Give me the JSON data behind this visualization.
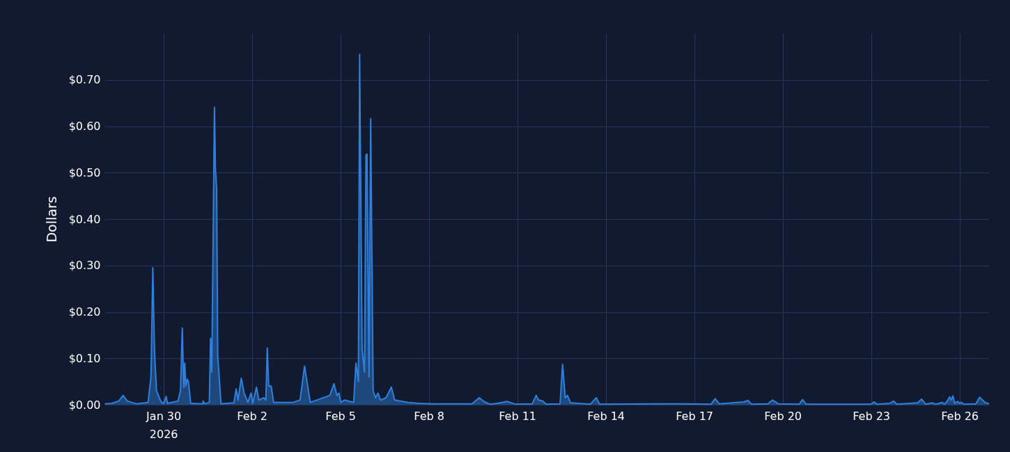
{
  "chart_data": {
    "type": "area",
    "ylabel": "Dollars",
    "grid": true,
    "xlim": [
      "2026-01-28T00:00",
      "2026-02-27T00:00"
    ],
    "xticks": [
      {
        "value": "2026-01-30",
        "label": "Jan 30\n2026"
      },
      {
        "value": "2026-02-02",
        "label": "Feb 2"
      },
      {
        "value": "2026-02-05",
        "label": "Feb 5"
      },
      {
        "value": "2026-02-08",
        "label": "Feb 8"
      },
      {
        "value": "2026-02-11",
        "label": "Feb 11"
      },
      {
        "value": "2026-02-14",
        "label": "Feb 14"
      },
      {
        "value": "2026-02-17",
        "label": "Feb 17"
      },
      {
        "value": "2026-02-20",
        "label": "Feb 20"
      },
      {
        "value": "2026-02-23",
        "label": "Feb 23"
      },
      {
        "value": "2026-02-26",
        "label": "Feb 26"
      }
    ],
    "ylim": [
      0,
      0.8
    ],
    "yticks": [
      {
        "value": 0,
        "label": "$0.00"
      },
      {
        "value": 0.1,
        "label": "$0.10"
      },
      {
        "value": 0.2,
        "label": "$0.20"
      },
      {
        "value": 0.3,
        "label": "$0.30"
      },
      {
        "value": 0.4,
        "label": "$0.40"
      },
      {
        "value": 0.5,
        "label": "$0.50"
      },
      {
        "value": 0.6,
        "label": "$0.60"
      },
      {
        "value": 0.7,
        "label": "$0.70"
      }
    ],
    "x": [
      "2026-01-28T00:20",
      "2026-01-28T06:00",
      "2026-01-28T11:40",
      "2026-01-28T15:10",
      "2026-01-28T18:30",
      "2026-01-29T01:50",
      "2026-01-29T11:30",
      "2026-01-29T13:50",
      "2026-01-29T15:20",
      "2026-01-29T16:40",
      "2026-01-29T18:20",
      "2026-01-29T21:40",
      "2026-01-30T00:00",
      "2026-01-30T02:10",
      "2026-01-30T03:20",
      "2026-01-30T11:50",
      "2026-01-30T13:50",
      "2026-01-30T15:20",
      "2026-01-30T16:30",
      "2026-01-30T17:20",
      "2026-01-30T18:10",
      "2026-01-30T19:20",
      "2026-01-30T20:20",
      "2026-01-30T22:10",
      "2026-01-31T07:50",
      "2026-01-31T08:20",
      "2026-01-31T09:30",
      "2026-01-31T13:20",
      "2026-01-31T14:20",
      "2026-01-31T15:20",
      "2026-01-31T17:30",
      "2026-01-31T18:20",
      "2026-01-31T19:20",
      "2026-01-31T20:10",
      "2026-01-31T22:50",
      "2026-02-01T09:20",
      "2026-02-01T11:10",
      "2026-02-01T12:40",
      "2026-02-01T15:20",
      "2026-02-01T17:40",
      "2026-02-01T20:40",
      "2026-02-01T23:20",
      "2026-02-02T00:40",
      "2026-02-02T03:40",
      "2026-02-02T05:40",
      "2026-02-02T09:40",
      "2026-02-02T11:20",
      "2026-02-02T12:30",
      "2026-02-02T13:40",
      "2026-02-02T15:40",
      "2026-02-02T17:40",
      "2026-02-03T09:30",
      "2026-02-03T15:10",
      "2026-02-03T18:50",
      "2026-02-03T23:30",
      "2026-02-04T15:20",
      "2026-02-04T18:50",
      "2026-02-04T21:10",
      "2026-02-04T22:50",
      "2026-02-05T00:20",
      "2026-02-05T03:20",
      "2026-02-05T10:50",
      "2026-02-05T12:40",
      "2026-02-05T14:40",
      "2026-02-05T15:40",
      "2026-02-05T17:40",
      "2026-02-05T19:40",
      "2026-02-05T20:50",
      "2026-02-05T21:40",
      "2026-02-05T23:20",
      "2026-02-06T00:40",
      "2026-02-06T02:40",
      "2026-02-06T04:40",
      "2026-02-06T06:40",
      "2026-02-06T08:30",
      "2026-02-06T13:10",
      "2026-02-06T17:30",
      "2026-02-06T20:10",
      "2026-02-07T07:00",
      "2026-02-07T15:30",
      "2026-02-08T02:50",
      "2026-02-09T11:10",
      "2026-02-09T17:00",
      "2026-02-09T21:20",
      "2026-02-10T02:10",
      "2026-02-10T07:50",
      "2026-02-10T15:50",
      "2026-02-10T22:50",
      "2026-02-11T12:10",
      "2026-02-11T15:20",
      "2026-02-11T17:20",
      "2026-02-11T20:40",
      "2026-02-11T23:30",
      "2026-02-12T10:50",
      "2026-02-12T12:50",
      "2026-02-12T15:00",
      "2026-02-12T16:50",
      "2026-02-12T19:20",
      "2026-02-13T11:20",
      "2026-02-13T16:20",
      "2026-02-13T18:50",
      "2026-02-15T20:10",
      "2026-02-16T14:00",
      "2026-02-17T13:40",
      "2026-02-17T17:00",
      "2026-02-17T20:20",
      "2026-02-18T16:10",
      "2026-02-18T19:50",
      "2026-02-18T22:40",
      "2026-02-19T12:00",
      "2026-02-19T15:40",
      "2026-02-19T20:30",
      "2026-02-20T13:30",
      "2026-02-20T16:10",
      "2026-02-20T19:10",
      "2026-02-23T00:00",
      "2026-02-23T02:20",
      "2026-02-23T04:50",
      "2026-02-23T15:10",
      "2026-02-23T18:20",
      "2026-02-23T20:50",
      "2026-02-24T13:50",
      "2026-02-24T17:00",
      "2026-02-24T20:30",
      "2026-02-25T02:10",
      "2026-02-25T04:50",
      "2026-02-25T10:00",
      "2026-02-25T11:30",
      "2026-02-25T13:30",
      "2026-02-25T15:50",
      "2026-02-25T17:10",
      "2026-02-25T18:30",
      "2026-02-25T20:00",
      "2026-02-25T22:20",
      "2026-02-25T23:50",
      "2026-02-26T01:20",
      "2026-02-26T03:40",
      "2026-02-26T13:10",
      "2026-02-26T16:20",
      "2026-02-26T20:40",
      "2026-02-27T00:00"
    ],
    "series": [
      {
        "color": "#2f80dc",
        "values": [
          0.002,
          0.003,
          0.008,
          0.02,
          0.008,
          0.002,
          0.005,
          0.06,
          0.295,
          0.12,
          0.03,
          0.008,
          0.002,
          0.018,
          0.003,
          0.008,
          0.03,
          0.165,
          0.037,
          0.09,
          0.04,
          0.055,
          0.05,
          0.003,
          0.002,
          0.008,
          0.002,
          0.005,
          0.143,
          0.07,
          0.641,
          0.507,
          0.464,
          0.107,
          0.002,
          0.004,
          0.034,
          0.01,
          0.057,
          0.025,
          0.005,
          0.025,
          0.003,
          0.038,
          0.01,
          0.015,
          0.01,
          0.122,
          0.04,
          0.04,
          0.005,
          0.005,
          0.01,
          0.083,
          0.005,
          0.02,
          0.045,
          0.02,
          0.025,
          0.005,
          0.01,
          0.005,
          0.09,
          0.05,
          0.755,
          0.12,
          0.07,
          0.538,
          0.54,
          0.06,
          0.616,
          0.03,
          0.015,
          0.025,
          0.01,
          0.015,
          0.038,
          0.01,
          0.005,
          0.003,
          0.002,
          0.002,
          0.015,
          0.006,
          0.001,
          0.003,
          0.007,
          0.001,
          0.002,
          0.02,
          0.01,
          0.008,
          0.001,
          0.002,
          0.087,
          0.015,
          0.02,
          0.004,
          0.001,
          0.015,
          0.001,
          0.002,
          0.002,
          0.001,
          0.013,
          0.002,
          0.006,
          0.009,
          0.001,
          0.002,
          0.01,
          0.002,
          0.001,
          0.011,
          0.001,
          0.001,
          0.006,
          0.001,
          0.003,
          0.008,
          0.001,
          0.004,
          0.012,
          0.001,
          0.004,
          0.001,
          0.005,
          0.001,
          0.006,
          0.017,
          0.01,
          0.019,
          0.003,
          0.007,
          0.003,
          0.005,
          0.001,
          0.002,
          0.016,
          0.005,
          0.002
        ]
      }
    ]
  }
}
